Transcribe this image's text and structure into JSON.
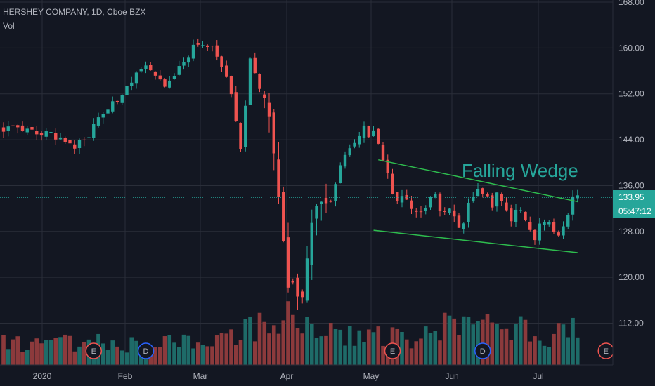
{
  "header": {
    "symbol_line": "HERSHEY COMPANY, 1D, Cboe BZX",
    "volume_label": "Vol"
  },
  "annotation": {
    "text": "Falling Wedge",
    "color": "#26a69a"
  },
  "price_axis": {
    "ticks": [
      "168.00",
      "160.00",
      "152.00",
      "144.00",
      "136.00",
      "128.00",
      "120.00",
      "112.00"
    ],
    "last_price": "133.95",
    "countdown": "05:47:12"
  },
  "time_axis": {
    "labels": [
      "2020",
      "Feb",
      "Mar",
      "Apr",
      "May",
      "Jun",
      "Jul"
    ]
  },
  "events": [
    {
      "label": "E",
      "kind": "earnings"
    },
    {
      "label": "D",
      "kind": "dividend"
    },
    {
      "label": "E",
      "kind": "earnings"
    },
    {
      "label": "D",
      "kind": "dividend"
    },
    {
      "label": "E",
      "kind": "earnings"
    }
  ],
  "colors": {
    "background": "#131722",
    "up": "#26a69a",
    "down": "#ef5350",
    "up_volume": "#1e6b68",
    "down_volume": "#8c3a3c",
    "trendline": "#2ebd4e",
    "grid": "#2a2e39",
    "text": "#b2b5be"
  },
  "chart_data": {
    "type": "candlestick",
    "title": "HERSHEY COMPANY, 1D, Cboe BZX",
    "ylim": [
      106,
      170
    ],
    "y_ticks": [
      112,
      120,
      128,
      136,
      144,
      152,
      160,
      168
    ],
    "x_labels": [
      "2020",
      "Feb",
      "Mar",
      "Apr",
      "May",
      "Jun",
      "Jul"
    ],
    "last_price": 133.95,
    "close_path": [
      [
        0,
        146
      ],
      [
        5,
        145.5
      ],
      [
        10,
        144.8
      ],
      [
        15,
        143
      ],
      [
        18,
        145
      ],
      [
        21,
        148.5
      ],
      [
        24,
        151
      ],
      [
        27,
        154.5
      ],
      [
        30,
        157.5
      ],
      [
        32,
        155.5
      ],
      [
        34,
        153
      ],
      [
        36,
        155
      ],
      [
        38,
        158
      ],
      [
        40,
        160
      ],
      [
        42,
        160.5
      ],
      [
        44,
        160.3
      ],
      [
        46,
        157
      ],
      [
        48,
        152
      ],
      [
        49,
        147
      ],
      [
        50,
        143
      ],
      [
        51,
        150
      ],
      [
        52,
        158.5
      ],
      [
        53,
        156
      ],
      [
        54,
        153
      ],
      [
        55,
        150.5
      ],
      [
        56,
        148
      ],
      [
        57,
        141
      ],
      [
        58,
        133
      ],
      [
        59,
        127
      ],
      [
        60,
        120
      ],
      [
        61,
        118
      ],
      [
        62,
        115
      ],
      [
        63,
        118
      ],
      [
        64,
        123
      ],
      [
        65,
        128
      ],
      [
        66,
        133
      ],
      [
        67,
        135
      ],
      [
        68,
        132
      ],
      [
        69,
        133.5
      ],
      [
        70,
        136
      ],
      [
        71,
        139
      ],
      [
        72,
        141
      ],
      [
        73,
        142
      ],
      [
        74,
        144
      ],
      [
        75,
        145
      ],
      [
        76,
        146
      ],
      [
        77,
        145
      ],
      [
        78,
        146
      ],
      [
        79,
        143
      ],
      [
        80,
        141
      ],
      [
        81,
        138
      ],
      [
        82,
        135
      ],
      [
        83,
        133
      ],
      [
        84,
        134
      ],
      [
        85,
        133
      ],
      [
        86,
        131.5
      ],
      [
        87,
        132
      ],
      [
        88,
        131.5
      ],
      [
        89,
        132
      ],
      [
        90,
        133.5
      ],
      [
        91,
        134
      ],
      [
        92,
        131.5
      ],
      [
        93,
        131
      ],
      [
        94,
        132
      ],
      [
        95,
        130.5
      ],
      [
        96,
        128.5
      ],
      [
        97,
        130
      ],
      [
        98,
        133
      ],
      [
        99,
        134
      ],
      [
        100,
        136
      ],
      [
        101,
        135
      ],
      [
        102,
        134
      ],
      [
        103,
        132.5
      ],
      [
        104,
        134.5
      ],
      [
        105,
        133
      ],
      [
        106,
        131.5
      ],
      [
        107,
        130
      ],
      [
        108,
        131.5
      ],
      [
        109,
        132
      ],
      [
        110,
        129.5
      ],
      [
        111,
        128
      ],
      [
        112,
        127
      ],
      [
        113,
        129
      ],
      [
        114,
        130
      ],
      [
        115,
        129
      ],
      [
        116,
        128
      ],
      [
        117,
        127
      ],
      [
        118,
        128.5
      ],
      [
        119,
        130.5
      ],
      [
        120,
        134
      ]
    ],
    "volume_profile": [
      [
        0,
        0.35
      ],
      [
        10,
        0.35
      ],
      [
        20,
        0.35
      ],
      [
        30,
        0.3
      ],
      [
        40,
        0.4
      ],
      [
        45,
        0.35
      ],
      [
        50,
        0.55
      ],
      [
        55,
        0.6
      ],
      [
        57,
        0.75
      ],
      [
        60,
        0.85
      ],
      [
        62,
        0.7
      ],
      [
        65,
        0.6
      ],
      [
        70,
        0.45
      ],
      [
        75,
        0.45
      ],
      [
        80,
        0.5
      ],
      [
        85,
        0.4
      ],
      [
        90,
        0.45
      ],
      [
        93,
        0.7
      ],
      [
        96,
        0.5
      ],
      [
        100,
        0.7
      ],
      [
        105,
        0.5
      ],
      [
        108,
        0.65
      ],
      [
        110,
        0.55
      ],
      [
        115,
        0.45
      ],
      [
        120,
        0.6
      ]
    ],
    "wedge": {
      "upper": {
        "start": [
          79,
          140.5
        ],
        "end": [
          121,
          133.2
        ]
      },
      "lower": {
        "start": [
          78,
          128.2
        ],
        "end": [
          121,
          124.3
        ]
      }
    },
    "events": [
      {
        "day": 19,
        "label": "E"
      },
      {
        "day": 30,
        "label": "D"
      },
      {
        "day": 82,
        "label": "E"
      },
      {
        "day": 101,
        "label": "D"
      },
      {
        "day": 127,
        "label": "E"
      }
    ],
    "grid": true
  }
}
